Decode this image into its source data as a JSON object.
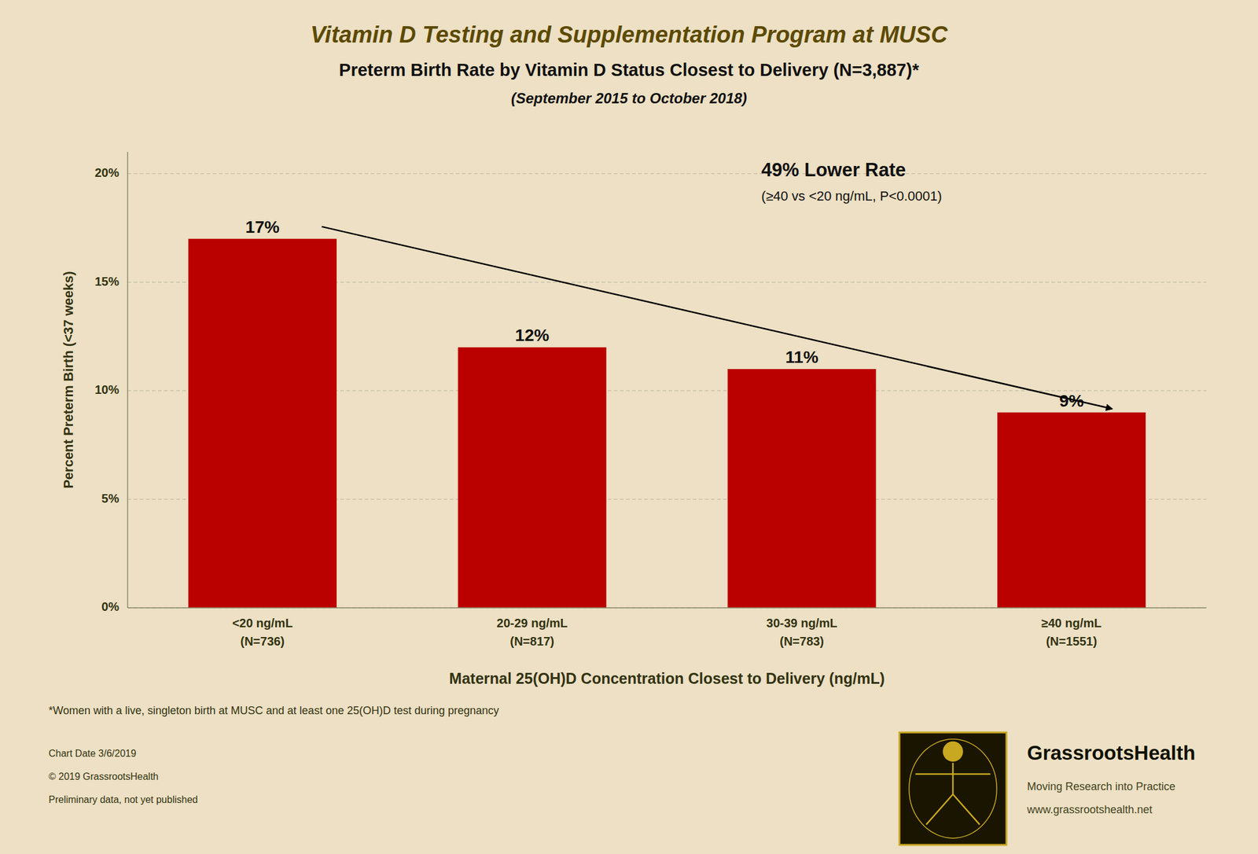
{
  "chart_data": {
    "type": "bar",
    "title": "Vitamin D Testing and Supplementation Program at MUSC",
    "subtitle": [
      "Preterm Birth Rate by Vitamin D Status Closest to Delivery (N=3,887)*",
      "(September 2015 to October 2018)"
    ],
    "categories": [
      "<20 ng/mL\n(N=736)",
      "20-29 ng/mL\n(N=817)",
      "30-39 ng/mL\n(N=783)",
      "≥40 ng/mL\n(N=1551)"
    ],
    "values": [
      17,
      12,
      11,
      9
    ],
    "value_labels": [
      "17%",
      "12%",
      "11%",
      "9%"
    ],
    "data_labels": true,
    "color": "#BB0000",
    "xlabel": "Maternal 25(OH)D Concentration Closest to Delivery (ng/mL)",
    "ylabel": "Percent Preterm Birth (<37 weeks)",
    "ylim": [
      0,
      21
    ],
    "yticks": [
      {
        "value": 0,
        "label": "0%"
      },
      {
        "value": 5,
        "label": "5%"
      },
      {
        "value": 10,
        "label": "10%"
      },
      {
        "value": 15,
        "label": "15%"
      },
      {
        "value": 20,
        "label": "20%"
      }
    ],
    "grid": true,
    "annotations": [
      "49% Lower Rate",
      "(≥40 vs <20 ng/mL, P<0.0001)"
    ],
    "footnotes": [
      "*Women with a live, singleton birth at MUSC and at least one 25(OH)D test during pregnancy",
      "Chart Date 3/6/2019",
      "© 2019 GrassrootsHealth",
      "Preliminary data, not yet published"
    ],
    "brand": [
      "GrassrootsHealth",
      "Moving Research into Practice",
      "www.grassrootshealth.net"
    ]
  }
}
